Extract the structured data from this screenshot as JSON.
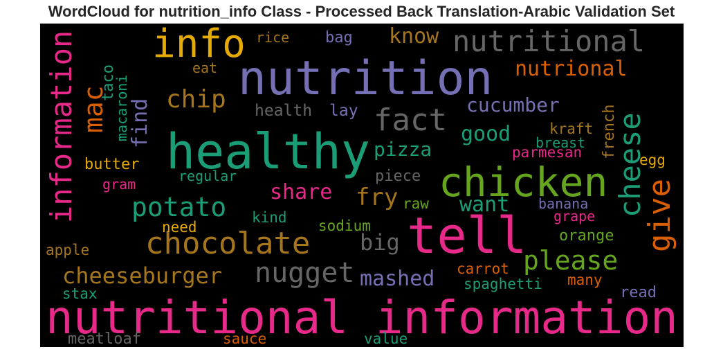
{
  "title": "WordCloud for nutrition_info Class - Processed Back Translation-Arabic Validation Set",
  "colors": {
    "background": "#000000",
    "pink": "#e7298a",
    "purple": "#7570b3",
    "teal": "#1b9e77",
    "orange": "#d95f02",
    "olive": "#a6761d",
    "green": "#66a61e",
    "yellow": "#e6ab02",
    "gray": "#666666"
  },
  "words": [
    {
      "text": "nutritional information",
      "color": "#e7298a"
    },
    {
      "text": "nutrition",
      "color": "#7570b3"
    },
    {
      "text": "healthy",
      "color": "#1b9e77"
    },
    {
      "text": "tell",
      "color": "#e7298a"
    },
    {
      "text": "chicken",
      "color": "#66a61e"
    },
    {
      "text": "info",
      "color": "#e6ab02"
    },
    {
      "text": "nutritional",
      "color": "#666666"
    },
    {
      "text": "information",
      "color": "#e7298a"
    },
    {
      "text": "chocolate",
      "color": "#a6761d"
    },
    {
      "text": "potato",
      "color": "#1b9e77"
    },
    {
      "text": "fact",
      "color": "#666666"
    },
    {
      "text": "nugget",
      "color": "#666666"
    },
    {
      "text": "please",
      "color": "#66a61e"
    },
    {
      "text": "cheese",
      "color": "#1b9e77"
    },
    {
      "text": "give",
      "color": "#d95f02"
    },
    {
      "text": "cheeseburger",
      "color": "#a6761d"
    },
    {
      "text": "mac",
      "color": "#d95f02"
    },
    {
      "text": "chip",
      "color": "#a6761d"
    },
    {
      "text": "nutrional",
      "color": "#d95f02"
    },
    {
      "text": "cucumber",
      "color": "#7570b3"
    },
    {
      "text": "mashed",
      "color": "#7570b3"
    },
    {
      "text": "pizza",
      "color": "#1b9e77"
    },
    {
      "text": "share",
      "color": "#e7298a"
    },
    {
      "text": "fry",
      "color": "#a6761d"
    },
    {
      "text": "want",
      "color": "#1b9e77"
    },
    {
      "text": "good",
      "color": "#1b9e77"
    },
    {
      "text": "know",
      "color": "#a6761d"
    },
    {
      "text": "big",
      "color": "#666666"
    },
    {
      "text": "find",
      "color": "#7570b3"
    },
    {
      "text": "health",
      "color": "#666666"
    },
    {
      "text": "lay",
      "color": "#7570b3"
    },
    {
      "text": "rice",
      "color": "#a6761d"
    },
    {
      "text": "bag",
      "color": "#7570b3"
    },
    {
      "text": "eat",
      "color": "#a6761d"
    },
    {
      "text": "taco",
      "color": "#1b9e77"
    },
    {
      "text": "macaroni",
      "color": "#1b9e77"
    },
    {
      "text": "butter",
      "color": "#e6ab02"
    },
    {
      "text": "gram",
      "color": "#e7298a"
    },
    {
      "text": "regular",
      "color": "#1b9e77"
    },
    {
      "text": "piece",
      "color": "#666666"
    },
    {
      "text": "kraft",
      "color": "#a6761d"
    },
    {
      "text": "breast",
      "color": "#1b9e77"
    },
    {
      "text": "parmesan",
      "color": "#e7298a"
    },
    {
      "text": "french",
      "color": "#a6761d"
    },
    {
      "text": "egg",
      "color": "#e6ab02"
    },
    {
      "text": "raw",
      "color": "#66a61e"
    },
    {
      "text": "banana",
      "color": "#7570b3"
    },
    {
      "text": "grape",
      "color": "#e7298a"
    },
    {
      "text": "kind",
      "color": "#1b9e77"
    },
    {
      "text": "need",
      "color": "#e6ab02"
    },
    {
      "text": "sodium",
      "color": "#66a61e"
    },
    {
      "text": "orange",
      "color": "#66a61e"
    },
    {
      "text": "apple",
      "color": "#a6761d"
    },
    {
      "text": "carrot",
      "color": "#d95f02"
    },
    {
      "text": "spaghetti",
      "color": "#1b9e77"
    },
    {
      "text": "many",
      "color": "#d95f02"
    },
    {
      "text": "stax",
      "color": "#1b9e77"
    },
    {
      "text": "read",
      "color": "#7570b3"
    },
    {
      "text": "meatloaf",
      "color": "#666666"
    },
    {
      "text": "sauce",
      "color": "#d95f02"
    },
    {
      "text": "value",
      "color": "#1b9e77"
    }
  ]
}
